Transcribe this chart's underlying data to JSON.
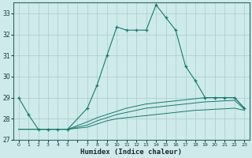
{
  "xlabel": "Humidex (Indice chaleur)",
  "x_values": [
    0,
    1,
    2,
    3,
    4,
    5,
    7,
    8,
    9,
    10,
    11,
    12,
    13,
    14,
    15,
    16,
    17,
    18,
    19,
    20,
    21,
    22,
    23
  ],
  "main_line": [
    29.0,
    28.2,
    27.5,
    27.5,
    27.5,
    27.5,
    28.5,
    29.6,
    31.0,
    32.35,
    32.2,
    32.2,
    32.2,
    33.4,
    32.8,
    32.2,
    30.5,
    29.8,
    29.0,
    29.0,
    29.0,
    29.0,
    28.5
  ],
  "flat_line1": [
    27.5,
    27.5,
    27.5,
    27.5,
    27.5,
    27.5,
    27.6,
    27.75,
    27.9,
    28.0,
    28.05,
    28.1,
    28.15,
    28.2,
    28.25,
    28.3,
    28.35,
    28.4,
    28.42,
    28.45,
    28.47,
    28.5,
    28.4
  ],
  "flat_line2": [
    27.5,
    27.5,
    27.5,
    27.5,
    27.5,
    27.5,
    27.7,
    27.9,
    28.05,
    28.2,
    28.3,
    28.4,
    28.5,
    28.55,
    28.6,
    28.65,
    28.7,
    28.75,
    28.8,
    28.82,
    28.85,
    28.87,
    28.45
  ],
  "flat_line3": [
    27.5,
    27.5,
    27.5,
    27.5,
    27.5,
    27.5,
    27.85,
    28.05,
    28.2,
    28.35,
    28.5,
    28.6,
    28.7,
    28.75,
    28.8,
    28.85,
    28.9,
    28.95,
    29.0,
    29.0,
    29.0,
    29.0,
    28.5
  ],
  "line_color": "#1a7a6e",
  "bg_color": "#ceeaea",
  "grid_color": "#aacccc",
  "ylim": [
    27.0,
    33.5
  ],
  "yticks": [
    27,
    28,
    29,
    30,
    31,
    32,
    33
  ],
  "xtick_labels": [
    "0",
    "1",
    "2",
    "3",
    "4",
    "5",
    "",
    "7",
    "8",
    "9",
    "10",
    "11",
    "12",
    "13",
    "14",
    "15",
    "16",
    "17",
    "18",
    "19",
    "20",
    "21",
    "22",
    "23"
  ]
}
